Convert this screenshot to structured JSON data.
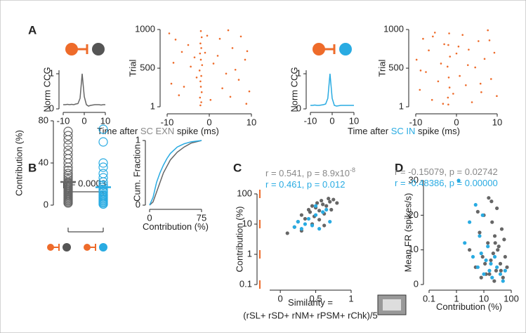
{
  "chart_data": [
    {
      "type": "line",
      "panel": "A",
      "ylabel": "Norm CCG",
      "x": [
        -10,
        -9,
        -8,
        -7,
        -6,
        -5,
        -4,
        -3,
        -2,
        -1,
        0,
        1,
        2,
        3,
        4,
        5,
        6,
        7,
        8,
        9,
        10
      ],
      "series": [
        {
          "color": "#666666",
          "values": [
            0.12,
            0.12,
            0.13,
            0.12,
            0.13,
            0.12,
            0.14,
            0.15,
            0.3,
            1,
            0.35,
            0.12,
            0.08,
            0.1,
            0.11,
            0.12,
            0.12,
            0.12,
            0.11,
            0.12,
            0.12
          ]
        }
      ],
      "xlim": [
        -10,
        10
      ],
      "ylim": [
        0,
        1.1
      ],
      "xticks": [
        -10,
        0,
        10
      ],
      "yticks": [
        0,
        1
      ]
    },
    {
      "type": "scatter",
      "ylabel": "Trial",
      "xlabel": [
        "Time after ",
        "SC EXN",
        " spike (ms)"
      ],
      "series": [
        {
          "color": "#ee6b2a",
          "x": [
            -2,
            -1.8,
            -2.1,
            -1.9,
            -2.2,
            -2,
            -1.7,
            -2.3,
            -1.9,
            -2.1,
            -2,
            -1.8,
            -2.2,
            -1.9,
            -2.1,
            -9.5,
            -8,
            -6.5,
            -5,
            -3.5,
            -0.5,
            1,
            2.5,
            4,
            5.5,
            7,
            8.5,
            9.5,
            -9,
            -7.2,
            -4.4,
            0.3,
            3.1,
            6.2,
            8.8,
            -6,
            -1,
            2,
            5,
            7.5,
            -8.5,
            -3,
            4.5,
            9
          ],
          "values": [
            980,
            900,
            820,
            760,
            690,
            610,
            540,
            470,
            400,
            330,
            260,
            190,
            120,
            60,
            20,
            950,
            870,
            710,
            800,
            640,
            920,
            560,
            880,
            430,
            760,
            350,
            610,
            200,
            300,
            150,
            520,
            90,
            240,
            480,
            40,
            260,
            700,
            660,
            130,
            910,
            570,
            380,
            990,
            720
          ]
        }
      ],
      "xlim": [
        -10,
        10
      ],
      "ylim": [
        1,
        1000
      ],
      "xticks": [
        -10,
        0,
        10
      ],
      "yticks": [
        1,
        500,
        1000
      ]
    },
    {
      "type": "line",
      "ylabel": "Norm CCG",
      "x": [
        -10,
        -9,
        -8,
        -7,
        -6,
        -5,
        -4,
        -3,
        -2,
        -1,
        0,
        1,
        2,
        3,
        4,
        5,
        6,
        7,
        8,
        9,
        10
      ],
      "series": [
        {
          "color": "#29abe2",
          "values": [
            0.1,
            0.1,
            0.11,
            0.1,
            0.1,
            0.11,
            0.12,
            0.14,
            0.3,
            1,
            0.3,
            0.1,
            0.08,
            0.09,
            0.1,
            0.1,
            0.1,
            0.1,
            0.1,
            0.1,
            0.1
          ]
        }
      ],
      "xlim": [
        -10,
        10
      ],
      "ylim": [
        0,
        1.1
      ],
      "xticks": [
        -10,
        0,
        10
      ],
      "yticks": [
        0,
        1
      ]
    },
    {
      "type": "scatter",
      "ylabel": "Trial",
      "xlabel": [
        "Time after ",
        "SC IN",
        " spike (ms)"
      ],
      "series": [
        {
          "color": "#ee6b2a",
          "x": [
            -1.8,
            -2,
            -1.6,
            -2.2,
            -1.9,
            -1.7,
            -2.1,
            -2,
            -9.8,
            -9,
            -8.2,
            -7.5,
            -6.8,
            -6,
            -5.3,
            -4.5,
            -3.8,
            -3,
            -0.8,
            0,
            0.8,
            1.5,
            2.3,
            3,
            3.8,
            4.6,
            5.4,
            6.1,
            6.9,
            7.7,
            8.5,
            9.3,
            9.9,
            -8.8,
            -5.8,
            -3.3,
            0.5,
            2.8,
            5.9,
            8.1
          ],
          "values": [
            950,
            800,
            650,
            520,
            380,
            250,
            120,
            30,
            610,
            220,
            880,
            450,
            730,
            90,
            960,
            330,
            560,
            810,
            170,
            690,
            400,
            930,
            280,
            740,
            60,
            510,
            850,
            190,
            620,
            990,
            360,
            700,
            140,
            470,
            910,
            40,
            780,
            540,
            300,
            860
          ]
        }
      ],
      "xlim": [
        -10,
        10
      ],
      "ylim": [
        1,
        1000
      ],
      "xticks": [
        -10,
        0,
        10
      ],
      "yticks": [
        1,
        500,
        1000
      ]
    },
    {
      "type": "strip",
      "panel": "B",
      "ylabel": "Contribution (%)",
      "annotations": [
        "p = 0.0003"
      ],
      "series": [
        {
          "color": "#666666",
          "mean": 22,
          "values": [
            2,
            3,
            4,
            5,
            6,
            7,
            8,
            9,
            10,
            11,
            12,
            13,
            14,
            15,
            16,
            17,
            18,
            19,
            20,
            21,
            22,
            24,
            26,
            28,
            30,
            33,
            36,
            40,
            44,
            48,
            52,
            57,
            62,
            66,
            70
          ]
        },
        {
          "color": "#29abe2",
          "mean": 17,
          "values": [
            1,
            2,
            3,
            4,
            5,
            6,
            7,
            8,
            9,
            10,
            12,
            13,
            15,
            17,
            19,
            22,
            26,
            30,
            36,
            40,
            60,
            72
          ]
        }
      ],
      "ylim": [
        0,
        80
      ],
      "yticks": [
        0,
        40,
        80
      ]
    },
    {
      "type": "line",
      "ylabel": "Cum. Fraction",
      "xlabel": [
        "Contribution (%)"
      ],
      "x": [
        0,
        5,
        10,
        15,
        20,
        25,
        30,
        40,
        50,
        60,
        75
      ],
      "series": [
        {
          "color": "#666666",
          "values": [
            0,
            0.05,
            0.2,
            0.35,
            0.5,
            0.6,
            0.7,
            0.82,
            0.9,
            0.96,
            1
          ]
        },
        {
          "color": "#29abe2",
          "values": [
            0,
            0.12,
            0.35,
            0.5,
            0.62,
            0.72,
            0.8,
            0.9,
            0.95,
            0.98,
            1
          ]
        }
      ],
      "xlim": [
        0,
        75
      ],
      "ylim": [
        0,
        1
      ],
      "xticks": [
        0,
        75
      ],
      "yticks": [
        0,
        1
      ]
    },
    {
      "type": "scatter",
      "panel": "C",
      "ylabel": "Contribution (%)",
      "xlabel": [
        "Similarity ="
      ],
      "xlabel2": "(rSL+ rSD+ rNM+ rPSM+ rChk)/5",
      "annotations": [
        {
          "text": "r = 0.541, p = 8.9x10",
          "sup": "-8",
          "color": "#888888"
        },
        {
          "text": "r = 0.461, p = 0.012",
          "color": "#29abe2"
        }
      ],
      "log_y": true,
      "series": [
        {
          "color": "#666666",
          "x": [
            0.1,
            0.2,
            0.25,
            0.3,
            0.35,
            0.4,
            0.42,
            0.45,
            0.48,
            0.5,
            0.52,
            0.55,
            0.58,
            0.6,
            0.62,
            0.65,
            0.68,
            0.7,
            0.72,
            0.75,
            0.8,
            0.3,
            0.45,
            0.55,
            0.62
          ],
          "values": [
            5,
            8,
            12,
            20,
            15,
            30,
            25,
            40,
            18,
            35,
            50,
            28,
            60,
            45,
            22,
            40,
            70,
            55,
            30,
            65,
            50,
            6,
            10,
            14,
            9
          ]
        },
        {
          "color": "#29abe2",
          "x": [
            0.2,
            0.25,
            0.3,
            0.35,
            0.4,
            0.45,
            0.5,
            0.55,
            0.6,
            0.65,
            0.5,
            0.7
          ],
          "values": [
            8,
            12,
            7,
            10,
            15,
            9,
            20,
            7,
            25,
            30,
            40,
            12
          ]
        }
      ],
      "xlim": [
        -0.15,
        1
      ],
      "ylim": [
        0.1,
        100
      ],
      "xticks": [
        0,
        0.5,
        1
      ],
      "yticks": [
        0.1,
        1,
        10,
        100
      ]
    },
    {
      "type": "scatter",
      "panel": "D",
      "ylabel": "Mean FR (spikes/s)",
      "xlabel": [
        "Contribution (%)"
      ],
      "annotations": [
        {
          "text": "r = -0.15079,    p = 0.02742",
          "color": "#888888"
        },
        {
          "text": "r = -0.48386,    p = 0.00000",
          "color": "#29abe2"
        }
      ],
      "log_x": true,
      "series": [
        {
          "color": "#666666",
          "x": [
            3,
            5,
            7,
            9,
            10,
            12,
            14,
            15,
            18,
            20,
            22,
            25,
            28,
            30,
            35,
            40,
            45,
            50,
            55,
            60,
            70,
            8,
            11,
            16,
            24,
            32,
            42,
            6,
            19,
            26
          ],
          "values": [
            10,
            5,
            15,
            8,
            20,
            3,
            12,
            25,
            7,
            18,
            9,
            14,
            4,
            22,
            11,
            6,
            16,
            2,
            13,
            8,
            5,
            2,
            6,
            3,
            1,
            10,
            4,
            21,
            24,
            12
          ]
        },
        {
          "color": "#29abe2",
          "x": [
            1.2,
            2,
            3,
            4,
            5,
            6,
            7,
            8,
            9,
            10,
            12,
            14,
            16,
            18,
            20,
            25,
            30,
            40,
            50,
            60
          ],
          "values": [
            30,
            12,
            18,
            8,
            23,
            5,
            14,
            9,
            20,
            3,
            7,
            11,
            4,
            6,
            2,
            8,
            5,
            3,
            1,
            4
          ]
        }
      ],
      "xlim": [
        0.1,
        100
      ],
      "ylim": [
        0,
        30
      ],
      "xticks": [
        0.1,
        1,
        10,
        100
      ],
      "yticks": [
        0,
        10,
        20,
        30
      ]
    }
  ]
}
